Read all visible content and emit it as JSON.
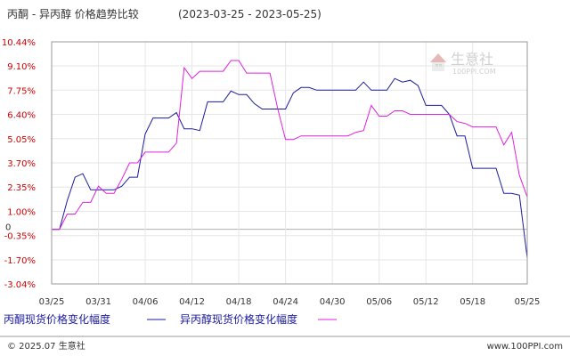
{
  "chart_data": {
    "type": "line",
    "title": "丙酮 - 异丙醇 价格趋势比较",
    "date_range": "(2023-03-25 - 2023-05-25)",
    "x": [
      "03/25",
      "03/26",
      "03/27",
      "03/28",
      "03/29",
      "03/30",
      "03/31",
      "04/01",
      "04/02",
      "04/03",
      "04/04",
      "04/05",
      "04/06",
      "04/07",
      "04/08",
      "04/09",
      "04/10",
      "04/11",
      "04/12",
      "04/13",
      "04/14",
      "04/15",
      "04/16",
      "04/17",
      "04/18",
      "04/19",
      "04/20",
      "04/21",
      "04/22",
      "04/23",
      "04/24",
      "04/25",
      "04/26",
      "04/27",
      "04/28",
      "04/29",
      "04/30",
      "05/01",
      "05/02",
      "05/03",
      "05/04",
      "05/05",
      "05/06",
      "05/07",
      "05/08",
      "05/09",
      "05/10",
      "05/11",
      "05/12",
      "05/13",
      "05/14",
      "05/15",
      "05/16",
      "05/17",
      "05/18",
      "05/19",
      "05/20",
      "05/21",
      "05/22",
      "05/23",
      "05/24",
      "05/25"
    ],
    "xticks": [
      "03/25",
      "03/31",
      "04/06",
      "04/12",
      "04/18",
      "04/24",
      "04/30",
      "05/06",
      "05/12",
      "05/18",
      "05/25"
    ],
    "yticks": [
      "10.44%",
      "9.10%",
      "7.75%",
      "6.40%",
      "5.05%",
      "3.70%",
      "2.35%",
      "1.00%",
      "-0.35%",
      "-1.70%",
      "-3.04%"
    ],
    "ylim": [
      -3.04,
      10.44
    ],
    "zero_label": "0",
    "grid": true,
    "series": [
      {
        "name": "丙酮现货价格变化幅度",
        "color": "#1a1aa0",
        "values": [
          0.0,
          0.0,
          1.6,
          2.9,
          3.1,
          2.2,
          2.2,
          2.2,
          2.2,
          2.4,
          2.9,
          2.9,
          5.3,
          6.2,
          6.2,
          6.2,
          6.5,
          5.6,
          5.6,
          5.5,
          7.1,
          7.1,
          7.1,
          7.7,
          7.5,
          7.5,
          7.0,
          6.7,
          6.7,
          6.7,
          6.7,
          7.6,
          7.9,
          7.9,
          7.75,
          7.75,
          7.75,
          7.75,
          7.75,
          7.75,
          8.2,
          7.75,
          7.75,
          7.75,
          8.4,
          8.2,
          8.3,
          8.0,
          6.9,
          6.9,
          6.9,
          6.4,
          5.2,
          5.2,
          3.4,
          3.4,
          3.4,
          3.4,
          2.0,
          2.0,
          1.9,
          -1.6
        ]
      },
      {
        "name": "异丙醇现货价格变化幅度",
        "color": "#e020e0",
        "values": [
          0.0,
          0.0,
          0.85,
          0.85,
          1.5,
          1.5,
          2.4,
          2.0,
          2.0,
          2.8,
          3.7,
          3.7,
          4.3,
          4.3,
          4.3,
          4.3,
          4.8,
          9.0,
          8.4,
          8.8,
          8.8,
          8.8,
          8.8,
          9.4,
          9.4,
          8.7,
          8.7,
          8.7,
          8.7,
          6.7,
          5.0,
          5.0,
          5.2,
          5.2,
          5.2,
          5.2,
          5.2,
          5.2,
          5.2,
          5.4,
          5.5,
          6.9,
          6.3,
          6.3,
          6.6,
          6.6,
          6.4,
          6.4,
          6.4,
          6.4,
          6.4,
          6.4,
          6.0,
          5.9,
          5.7,
          5.7,
          5.7,
          5.7,
          4.7,
          5.4,
          3.0,
          1.8
        ]
      }
    ]
  },
  "watermark": {
    "brand": "生意社",
    "url": "100PPI.COM"
  },
  "footer": {
    "copyright": "© 2025.07 生意社",
    "url": "www.100PPI.com"
  }
}
